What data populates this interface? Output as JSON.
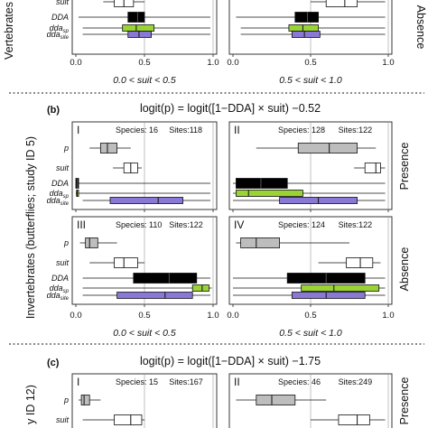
{
  "sections": {
    "a": {
      "row_label": "Vertebrates",
      "right_label": "Absence",
      "x_ticks": [
        "0.0",
        "0.5",
        "1.0"
      ],
      "left_caption": "0.0 < suit < 0.5",
      "right_caption": "0.5 < suit < 1.0"
    },
    "b": {
      "tag": "(b)",
      "formula": "logit(p) = logit([1−DDA] × suit) −0.52",
      "y_axis_label": "Invertebrates (butterflies; study ID 5)",
      "row_labels": [
        "Presence",
        "Absence"
      ],
      "x_ticks": [
        "0.0",
        "0.5",
        "1.0"
      ],
      "left_caption": "0.0 < suit < 0.5",
      "right_caption": "0.5 < suit < 1.0"
    },
    "c": {
      "tag": "(c)",
      "formula": "logit(p) = logit([1−DDA] × suit) −1.75",
      "y_axis_label": "y ID 12)",
      "row_label": "Presence"
    }
  },
  "row_labels": [
    "p",
    "suit",
    "DDA",
    "dda_sp",
    "dda_site"
  ],
  "colors": {
    "p": "#bdbdbd",
    "suit": "#ffffff",
    "DDA": "#000000",
    "dda_sp": "#9ad334",
    "dda_site": "#8a78d6"
  },
  "chart_data": [
    {
      "id": "a-left",
      "type": "boxplot",
      "xlim": [
        0,
        1
      ],
      "rows_visible": [
        "suit",
        "DDA",
        "dda_sp",
        "dda_site"
      ],
      "boxes": {
        "suit": {
          "min": 0.2,
          "q1": 0.28,
          "median": 0.35,
          "q3": 0.42,
          "max": 0.5
        },
        "DDA": {
          "min": 0.02,
          "q1": 0.38,
          "median": 0.45,
          "q3": 0.5,
          "max": 0.98
        },
        "dda_sp": {
          "min": 0.05,
          "q1": 0.34,
          "median": 0.44,
          "q3": 0.57,
          "max": 0.98
        },
        "dda_site": {
          "min": 0.05,
          "q1": 0.38,
          "median": 0.46,
          "q3": 0.55,
          "max": 0.98
        }
      }
    },
    {
      "id": "a-right",
      "type": "boxplot",
      "xlim": [
        0,
        1
      ],
      "rows_visible": [
        "suit",
        "DDA",
        "dda_sp",
        "dda_site"
      ],
      "boxes": {
        "suit": {
          "min": 0.5,
          "q1": 0.6,
          "median": 0.72,
          "q3": 0.8,
          "max": 0.98
        },
        "DDA": {
          "min": 0.02,
          "q1": 0.4,
          "median": 0.48,
          "q3": 0.55,
          "max": 0.98
        },
        "dda_sp": {
          "min": 0.05,
          "q1": 0.36,
          "median": 0.45,
          "q3": 0.55,
          "max": 0.98
        },
        "dda_site": {
          "min": 0.05,
          "q1": 0.38,
          "median": 0.46,
          "q3": 0.56,
          "max": 0.98
        }
      }
    },
    {
      "id": "b-I",
      "type": "boxplot",
      "xlim": [
        0,
        1
      ],
      "panel": "I",
      "species_label": "Species:",
      "species": "16",
      "sites_label": "Sites:",
      "sites": "118",
      "boxes": {
        "p": {
          "min": 0.1,
          "q1": 0.18,
          "median": 0.23,
          "q3": 0.3,
          "max": 0.4
        },
        "suit": {
          "min": 0.27,
          "q1": 0.35,
          "median": 0.4,
          "q3": 0.45,
          "max": 0.48
        },
        "DDA": {
          "min": 0.0,
          "q1": 0.0,
          "median": 0.01,
          "q3": 0.02,
          "max": 0.98
        },
        "dda_sp": {
          "min": 0.0,
          "q1": 0.005,
          "median": 0.01,
          "q3": 0.02,
          "max": 0.98
        },
        "dda_site": {
          "min": 0.05,
          "q1": 0.25,
          "median": 0.6,
          "q3": 0.78,
          "max": 0.98
        }
      }
    },
    {
      "id": "b-II",
      "type": "boxplot",
      "xlim": [
        0,
        1
      ],
      "panel": "II",
      "species_label": "Species:",
      "species": "128",
      "sites_label": "Sites:",
      "sites": "122",
      "boxes": {
        "p": {
          "min": 0.15,
          "q1": 0.42,
          "median": 0.62,
          "q3": 0.8,
          "max": 0.92
        },
        "suit": {
          "min": 0.78,
          "q1": 0.85,
          "median": 0.92,
          "q3": 0.95,
          "max": 0.98
        },
        "DDA": {
          "min": 0.0,
          "q1": 0.02,
          "median": 0.18,
          "q3": 0.35,
          "max": 0.98
        },
        "dda_sp": {
          "min": 0.0,
          "q1": 0.02,
          "median": 0.1,
          "q3": 0.45,
          "max": 0.98
        },
        "dda_site": {
          "min": 0.0,
          "q1": 0.3,
          "median": 0.55,
          "q3": 0.8,
          "max": 0.98
        }
      }
    },
    {
      "id": "b-III",
      "type": "boxplot",
      "xlim": [
        0,
        1
      ],
      "panel": "III",
      "species_label": "Species:",
      "species": "110",
      "sites_label": "Sites:",
      "sites": "122",
      "boxes": {
        "p": {
          "min": 0.03,
          "q1": 0.07,
          "median": 0.1,
          "q3": 0.16,
          "max": 0.3
        },
        "suit": {
          "min": 0.1,
          "q1": 0.28,
          "median": 0.35,
          "q3": 0.45,
          "max": 0.5
        },
        "DDA": {
          "min": 0.05,
          "q1": 0.42,
          "median": 0.68,
          "q3": 0.88,
          "max": 0.98
        },
        "dda_sp": {
          "min": 0.05,
          "q1": 0.85,
          "median": 0.92,
          "q3": 0.97,
          "max": 0.99
        },
        "dda_site": {
          "min": 0.05,
          "q1": 0.3,
          "median": 0.65,
          "q3": 0.85,
          "max": 0.98
        }
      }
    },
    {
      "id": "b-IV",
      "type": "boxplot",
      "xlim": [
        0,
        1
      ],
      "panel": "IV",
      "species_label": "Species:",
      "species": "124",
      "sites_label": "Sites:",
      "sites": "122",
      "boxes": {
        "p": {
          "min": 0.02,
          "q1": 0.05,
          "median": 0.15,
          "q3": 0.3,
          "max": 0.75
        },
        "suit": {
          "min": 0.55,
          "q1": 0.73,
          "median": 0.82,
          "q3": 0.9,
          "max": 0.95
        },
        "DDA": {
          "min": 0.0,
          "q1": 0.35,
          "median": 0.6,
          "q3": 0.85,
          "max": 0.98
        },
        "dda_sp": {
          "min": 0.0,
          "q1": 0.44,
          "median": 0.65,
          "q3": 0.94,
          "max": 0.98
        },
        "dda_site": {
          "min": 0.0,
          "q1": 0.38,
          "median": 0.6,
          "q3": 0.85,
          "max": 0.98
        }
      }
    },
    {
      "id": "c-I",
      "type": "boxplot",
      "xlim": [
        0,
        1
      ],
      "panel": "I",
      "species_label": "Species:",
      "species": "15",
      "sites_label": "Sites:",
      "sites": "167",
      "rows_visible": [
        "p",
        "suit",
        "DDA"
      ],
      "boxes": {
        "p": {
          "min": 0.02,
          "q1": 0.04,
          "median": 0.06,
          "q3": 0.1,
          "max": 0.18
        },
        "suit": {
          "min": 0.05,
          "q1": 0.28,
          "median": 0.4,
          "q3": 0.48,
          "max": 0.5
        },
        "DDA": {
          "min": 0.05,
          "q1": 0.15,
          "median": 0.2,
          "q3": 0.25,
          "max": 0.98
        }
      }
    },
    {
      "id": "c-II",
      "type": "boxplot",
      "xlim": [
        0,
        1
      ],
      "panel": "II",
      "species_label": "Species:",
      "species": "46",
      "sites_label": "Sites:",
      "sites": "249",
      "rows_visible": [
        "p",
        "suit",
        "DDA"
      ],
      "boxes": {
        "p": {
          "min": 0.02,
          "q1": 0.15,
          "median": 0.25,
          "q3": 0.4,
          "max": 0.6
        },
        "suit": {
          "min": 0.5,
          "q1": 0.68,
          "median": 0.8,
          "q3": 0.88,
          "max": 0.98
        },
        "DDA": {
          "min": 0.05,
          "q1": 0.28,
          "median": 0.38,
          "q3": 0.45,
          "max": 0.98
        }
      }
    }
  ]
}
